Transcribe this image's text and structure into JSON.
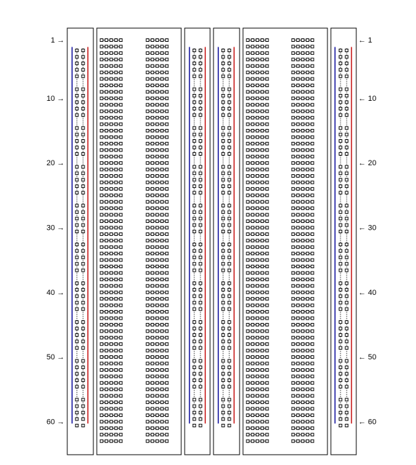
{
  "diagram": {
    "type": "breadboard",
    "rows": 63,
    "row_labels": [
      "1",
      "10",
      "20",
      "30",
      "40",
      "50",
      "60"
    ],
    "left_arrow": "→",
    "right_arrow": "←",
    "colors": {
      "outline": "#000000",
      "hole": "#000000",
      "rail_negative": "#1a1aa0",
      "rail_positive": "#c81e1e",
      "background": "#ffffff"
    },
    "power_strips": [
      {
        "id": "left",
        "columns": 2,
        "holes_per_group": 5,
        "groups": 10,
        "group_starts": [
          1,
          7,
          13,
          19,
          25,
          31,
          37,
          43,
          49,
          55
        ]
      },
      {
        "id": "center-left",
        "columns": 2,
        "holes_per_group": 5,
        "groups": 10,
        "group_starts": [
          1,
          7,
          13,
          19,
          25,
          31,
          37,
          43,
          49,
          55
        ]
      },
      {
        "id": "center-right",
        "columns": 2,
        "holes_per_group": 5,
        "groups": 10,
        "group_starts": [
          1,
          7,
          13,
          19,
          25,
          31,
          37,
          43,
          49,
          55
        ]
      },
      {
        "id": "right",
        "columns": 2,
        "holes_per_group": 5,
        "groups": 10,
        "group_starts": [
          1,
          7,
          13,
          19,
          25,
          31,
          37,
          43,
          49,
          55
        ]
      }
    ],
    "terminal_strips": [
      {
        "id": "left-terminal",
        "blocks": 2,
        "holes_per_row": 5
      },
      {
        "id": "right-terminal",
        "blocks": 2,
        "holes_per_row": 5
      }
    ]
  }
}
